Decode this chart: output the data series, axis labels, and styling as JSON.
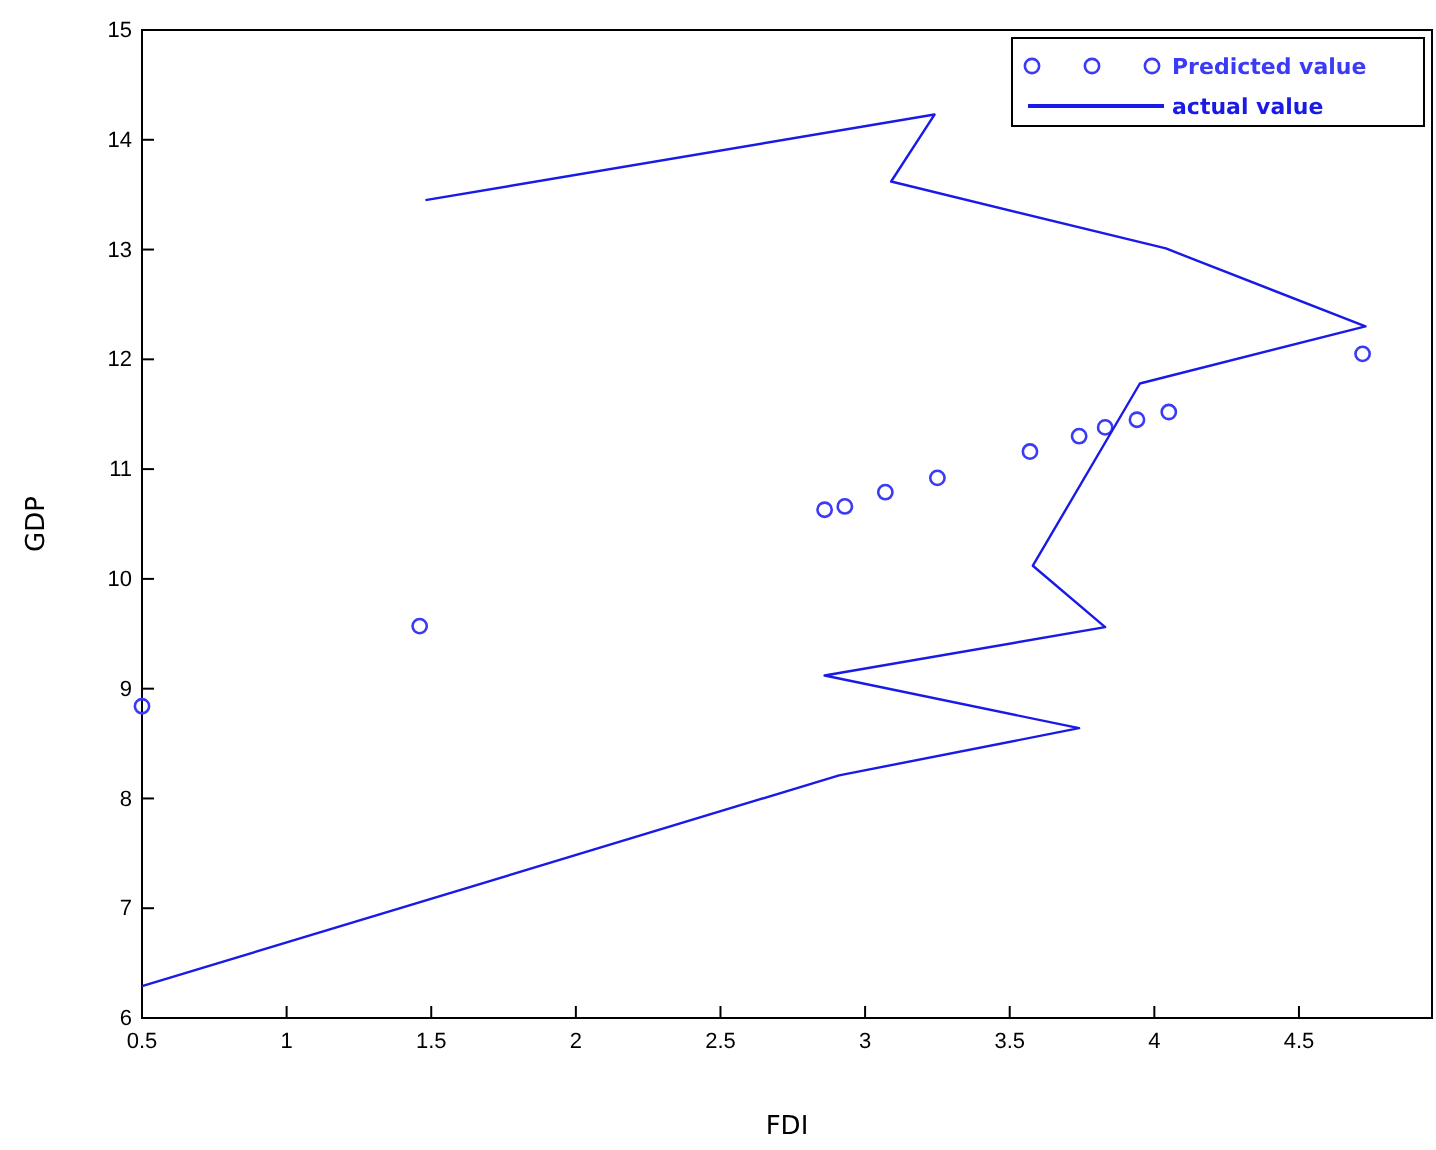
{
  "chart_data": {
    "type": "scatter",
    "xlabel": "FDI",
    "ylabel": "GDP",
    "xlim": [
      0.5,
      4.96
    ],
    "xticks": [
      0.5,
      1,
      1.5,
      2,
      2.5,
      3,
      3.5,
      4,
      4.5
    ],
    "ylim": [
      6,
      15
    ],
    "yticks": [
      6,
      7,
      8,
      9,
      10,
      11,
      12,
      13,
      14,
      15
    ],
    "legend": "top right",
    "grid": false,
    "series": [
      {
        "name": "Predicted value",
        "marker": "circle",
        "color": "#3b3bf5",
        "x": [
          0.5,
          1.46,
          2.86,
          2.93,
          3.07,
          3.25,
          3.57,
          3.74,
          3.83,
          3.94,
          4.05,
          4.72
        ],
        "values": [
          8.84,
          9.57,
          10.63,
          10.66,
          10.79,
          10.92,
          11.16,
          11.3,
          11.38,
          11.45,
          11.52,
          12.05
        ]
      },
      {
        "name": "actual value",
        "type": "line",
        "marker": "none",
        "line_style": "solid",
        "color": "#1a1ae6",
        "x": [
          0.5,
          2.91,
          3.74,
          2.86,
          3.83,
          3.58,
          3.95,
          4.73,
          4.04,
          3.09,
          3.24,
          1.48
        ],
        "values": [
          6.29,
          8.21,
          8.64,
          9.12,
          9.56,
          10.12,
          11.78,
          12.3,
          13.01,
          13.62,
          14.23,
          13.45
        ]
      }
    ]
  }
}
